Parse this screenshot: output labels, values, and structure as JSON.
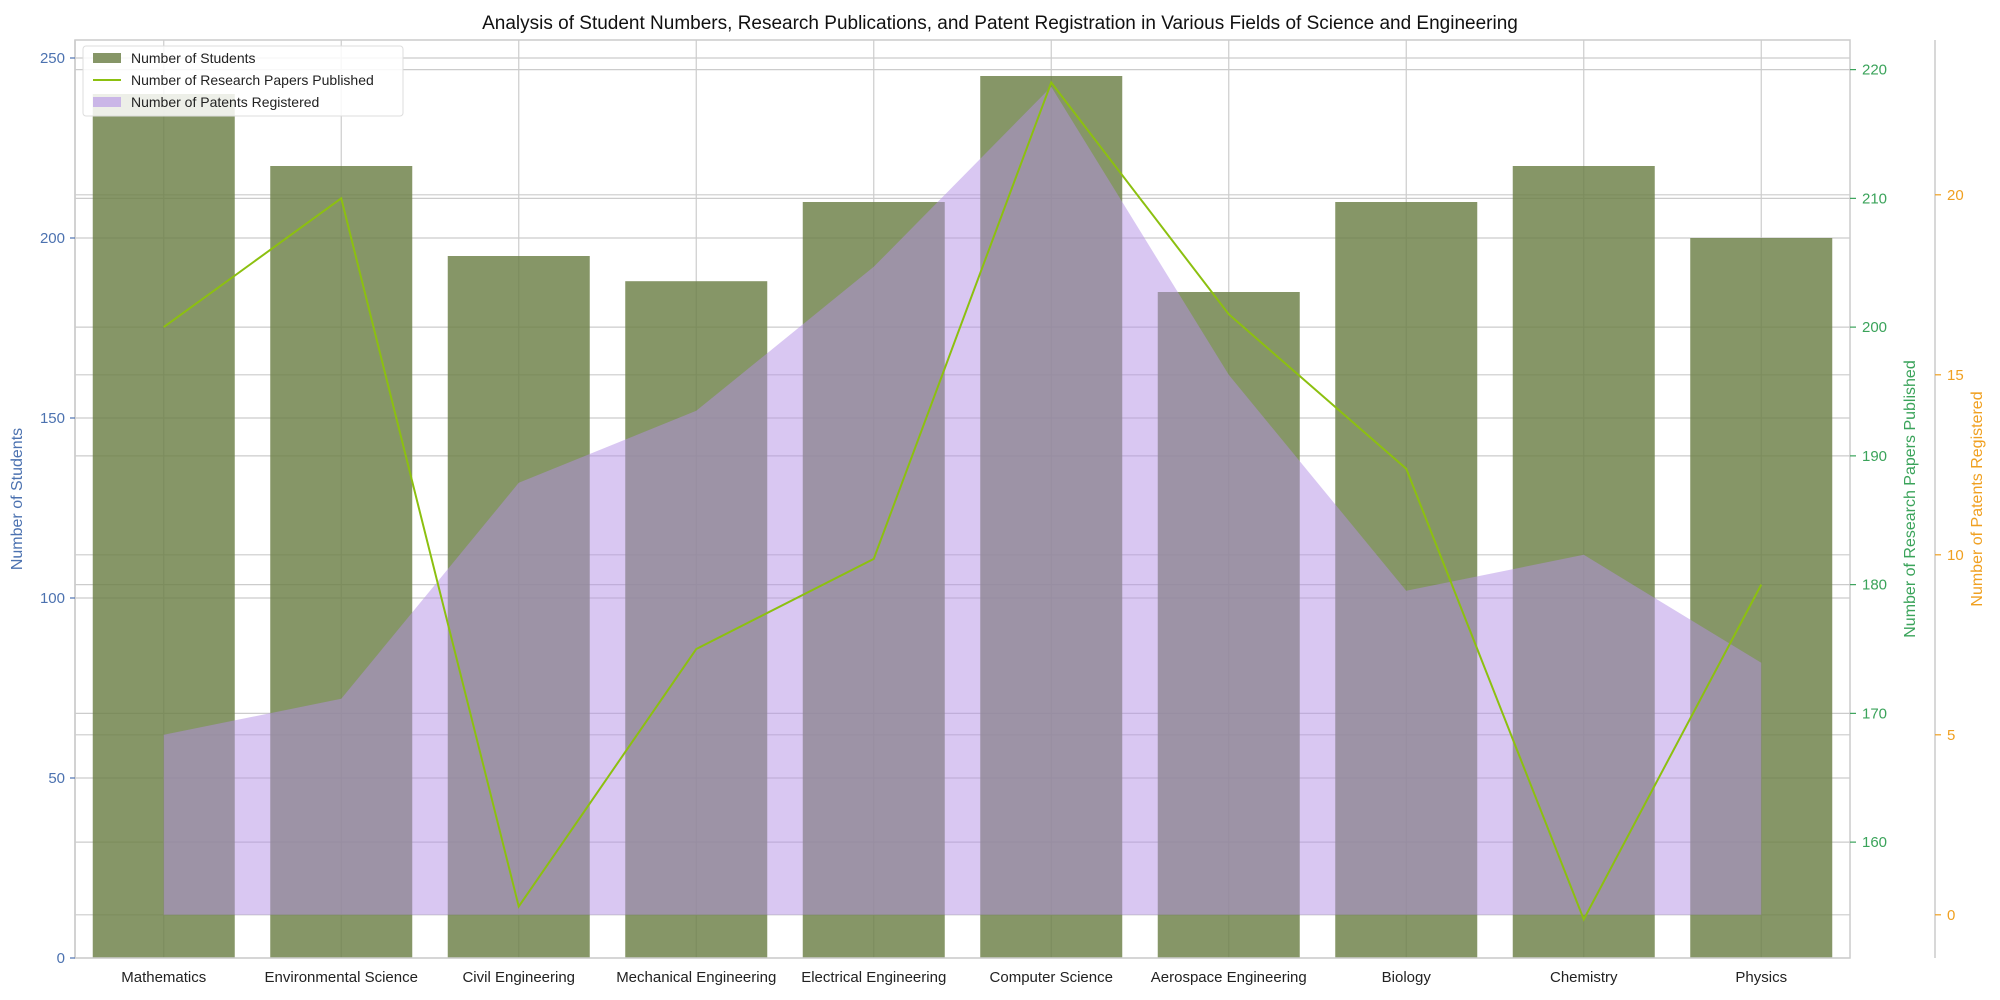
{
  "chart_data": {
    "type": "bar",
    "title": "Analysis of Student Numbers, Research Publications, and Patent Registration in Various Fields of Science and Engineering",
    "categories": [
      "Mathematics",
      "Environmental Science",
      "Civil Engineering",
      "Mechanical Engineering",
      "Electrical Engineering",
      "Computer Science",
      "Aerospace Engineering",
      "Biology",
      "Chemistry",
      "Physics"
    ],
    "series": [
      {
        "name": "Number of Students",
        "kind": "bar",
        "axis": "left",
        "color": "#6b7f45",
        "values": [
          240,
          220,
          195,
          188,
          210,
          245,
          185,
          210,
          220,
          200
        ]
      },
      {
        "name": "Number of Research Papers Published",
        "kind": "line",
        "axis": "right1",
        "color": "#8cc010",
        "values": [
          200,
          210,
          155,
          175,
          182,
          219,
          201,
          189,
          154,
          180
        ]
      },
      {
        "name": "Number of Patents Registered",
        "kind": "area",
        "axis": "right2",
        "color": "#b38fe6",
        "values": [
          5,
          6,
          12,
          14,
          18,
          23,
          15,
          9,
          10,
          7
        ]
      }
    ],
    "axes": {
      "left": {
        "label": "Number of Students",
        "color": "#4c72b0",
        "ylim": [
          0,
          255
        ],
        "ticks": [
          0,
          50,
          100,
          150,
          200,
          250
        ]
      },
      "right1": {
        "label": "Number of Research Papers Published",
        "color": "#3aa35a",
        "ylim": [
          151,
          222.3
        ],
        "ticks": [
          160,
          170,
          180,
          190,
          200,
          210,
          220
        ]
      },
      "right2": {
        "label": "Number of Patents Registered",
        "color": "#f0a020",
        "ylim": [
          -1.2,
          24.3
        ],
        "ticks": [
          0,
          5,
          10,
          15,
          20
        ]
      }
    },
    "grid": true,
    "legend_position": "top-left"
  }
}
